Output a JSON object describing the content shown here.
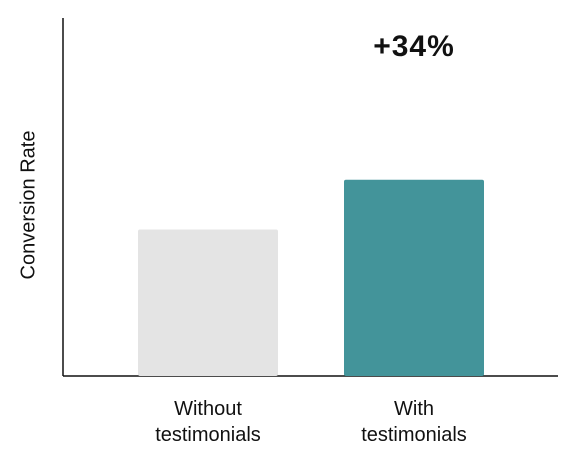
{
  "chart_data": {
    "type": "bar",
    "categories": [
      "Without testimonials",
      "With testimonials"
    ],
    "category_lines": [
      [
        "Without",
        "testimonials"
      ],
      [
        "With",
        "testimonials"
      ]
    ],
    "values": [
      100,
      134
    ],
    "colors": [
      "#e4e4e4",
      "#43949a"
    ],
    "title": "",
    "xlabel": "",
    "ylabel": "Conversion Rate",
    "ylim": [
      0,
      200
    ],
    "grid": false,
    "annotations": [
      {
        "category": "With testimonials",
        "text": "+34%"
      }
    ]
  }
}
